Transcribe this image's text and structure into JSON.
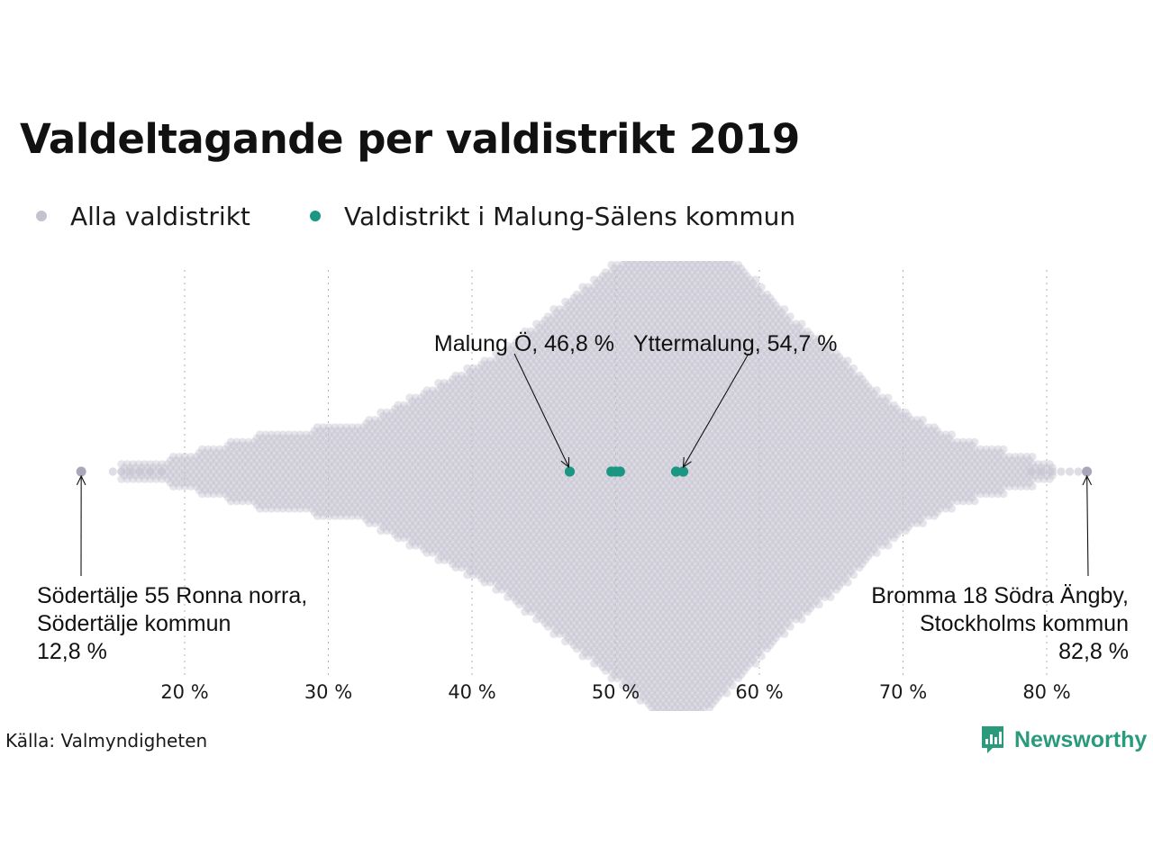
{
  "title": "Valdeltagande per valdistrikt 2019",
  "legend": {
    "items": [
      {
        "label": "Alla valdistrikt",
        "color": "#c4c2d0"
      },
      {
        "label": "Valdistrikt i Malung-Sälens kommun",
        "color": "#1a9683"
      }
    ]
  },
  "source": "Källa: Valmyndigheten",
  "brand": {
    "name": "Newsworthy",
    "color": "#2a9a7c",
    "icon": "newsworthy-logo-icon"
  },
  "chart_data": {
    "type": "scatter",
    "subtype": "beeswarm",
    "title": "Valdeltagande per valdistrikt 2019",
    "xlabel": "",
    "ylabel": "",
    "xlim": [
      5,
      85
    ],
    "x_ticks": [
      20,
      30,
      40,
      50,
      60,
      70,
      80
    ],
    "x_tick_labels": [
      "20 %",
      "30 %",
      "40 %",
      "50 %",
      "60 %",
      "70 %",
      "80 %"
    ],
    "grid": "vertical dotted",
    "legend_position": "top-left",
    "series": [
      {
        "name": "Alla valdistrikt",
        "color": "#c4c2d0",
        "distribution_profile": [
          [
            13,
            1
          ],
          [
            16,
            1
          ],
          [
            18,
            1
          ],
          [
            20,
            2
          ],
          [
            22,
            3
          ],
          [
            24,
            4
          ],
          [
            26,
            5
          ],
          [
            28,
            5
          ],
          [
            30,
            6
          ],
          [
            32,
            6
          ],
          [
            34,
            8
          ],
          [
            36,
            10
          ],
          [
            38,
            12
          ],
          [
            40,
            14
          ],
          [
            42,
            16
          ],
          [
            44,
            19
          ],
          [
            46,
            22
          ],
          [
            48,
            25
          ],
          [
            50,
            28
          ],
          [
            52,
            31
          ],
          [
            54,
            36
          ],
          [
            56,
            33
          ],
          [
            58,
            29
          ],
          [
            60,
            25
          ],
          [
            62,
            21
          ],
          [
            64,
            18
          ],
          [
            66,
            15
          ],
          [
            68,
            11
          ],
          [
            70,
            8
          ],
          [
            72,
            6
          ],
          [
            74,
            4
          ],
          [
            76,
            3
          ],
          [
            78,
            2
          ],
          [
            80,
            1
          ],
          [
            82.8,
            1
          ]
        ]
      },
      {
        "name": "Valdistrikt i Malung-Sälens kommun",
        "color": "#1a9683",
        "values": [
          46.8,
          49.7,
          50.0,
          50.3,
          54.2,
          54.7
        ]
      }
    ],
    "annotations": [
      {
        "text": "Malung Ö, 46,8 %",
        "x": 46.8
      },
      {
        "text": "Yttermalung, 54,7 %",
        "x": 54.7
      },
      {
        "lines": [
          "Södertälje 55 Ronna norra,",
          "Södertälje kommun",
          "12,8 %"
        ],
        "x": 12.8
      },
      {
        "lines": [
          "Bromma 18 Södra Ängby,",
          "Stockholms kommun",
          "82,8 %"
        ],
        "x": 82.8
      }
    ]
  }
}
